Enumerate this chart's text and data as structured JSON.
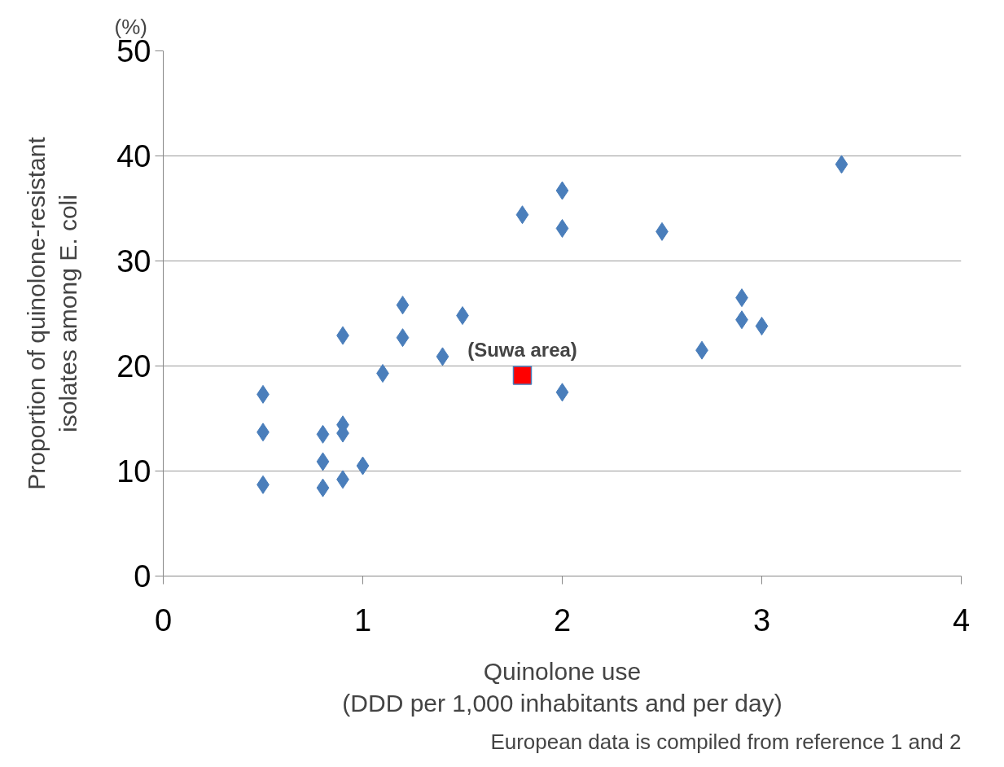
{
  "chart_data": {
    "type": "scatter",
    "xlabel": "Quinolone use\n(DDD per 1,000 inhabitants and per day)",
    "ylabel": "Proportion of quinolone-resistant\nisolates among E. coli",
    "xlim": [
      0,
      4
    ],
    "ylim": [
      0,
      50
    ],
    "xticks": [
      0,
      1,
      2,
      3,
      4
    ],
    "yticks": [
      0,
      10,
      20,
      30,
      40,
      50
    ],
    "grid": "y",
    "marker": "diamond",
    "series": [
      {
        "color": "#4a7ebb",
        "x": [
          0.5,
          0.5,
          0.5,
          0.8,
          0.8,
          0.8,
          0.9,
          0.9,
          0.9,
          0.9,
          1.0,
          1.1,
          1.2,
          1.2,
          1.4,
          1.5,
          1.8,
          2.0,
          2.0,
          2.0,
          2.5,
          2.7,
          2.9,
          2.9,
          3.0,
          3.4
        ],
        "values": [
          17.3,
          13.7,
          8.7,
          13.5,
          10.9,
          8.4,
          22.9,
          14.4,
          13.6,
          9.2,
          10.5,
          19.3,
          25.8,
          22.7,
          20.9,
          24.8,
          34.4,
          36.7,
          33.1,
          17.5,
          32.8,
          21.5,
          26.5,
          24.4,
          23.8,
          39.2
        ]
      },
      {
        "color": "#ff0000",
        "marker": "square",
        "x": [
          1.8
        ],
        "values": [
          19.1
        ]
      }
    ],
    "annotations": [
      "(%)",
      {
        "text": "(Suwa area)",
        "x": 1.8,
        "y": 19.1
      },
      "European data is compiled from reference 1 and 2"
    ]
  }
}
